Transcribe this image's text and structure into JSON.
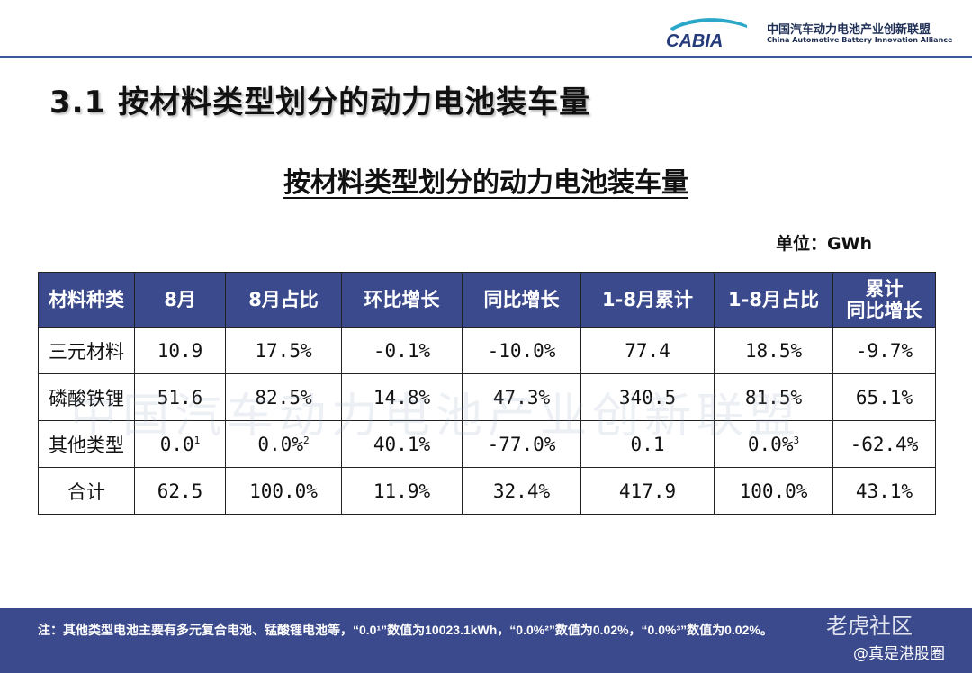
{
  "header": {
    "logo_text": "CABIA",
    "org_name_cn": "中国汽车动力电池产业创新联盟",
    "org_name_en": "China Automotive Battery Innovation Alliance",
    "accent_color": "#3b4a8c"
  },
  "page_title": "3.1 按材料类型划分的动力电池装车量",
  "table_title": "按材料类型划分的动力电池装车量",
  "unit_label": "单位：GWh",
  "watermark_text": "中国汽车动力电池产业创新联盟",
  "table": {
    "headers": [
      "材料种类",
      "8月",
      "8月占比",
      "环比增长",
      "同比增长",
      "1-8月累计",
      "1-8月占比",
      "累计",
      "同比增长"
    ],
    "rows": [
      {
        "type": "三元材料",
        "aug": "10.9",
        "aug_share": "17.5%",
        "mom": "-0.1%",
        "yoy": "-10.0%",
        "ytd": "77.4",
        "ytd_share": "18.5%",
        "ytd_yoy": "-9.7%"
      },
      {
        "type": "磷酸铁锂",
        "aug": "51.6",
        "aug_share": "82.5%",
        "mom": "14.8%",
        "yoy": "47.3%",
        "ytd": "340.5",
        "ytd_share": "81.5%",
        "ytd_yoy": "65.1%"
      },
      {
        "type": "其他类型",
        "aug": "0.0",
        "aug_note": "1",
        "aug_share": "0.0%",
        "aug_share_note": "2",
        "mom": "40.1%",
        "yoy": "-77.0%",
        "ytd": "0.1",
        "ytd_share": "0.0%",
        "ytd_share_note": "3",
        "ytd_yoy": "-62.4%"
      },
      {
        "type": "合计",
        "aug": "62.5",
        "aug_share": "100.0%",
        "mom": "11.9%",
        "yoy": "32.4%",
        "ytd": "417.9",
        "ytd_share": "100.0%",
        "ytd_yoy": "43.1%"
      }
    ]
  },
  "footer": {
    "note": "注：其他类型电池主要有多元复合电池、锰酸锂电池等，“0.0¹”数值为10023.1kWh，“0.0%²”数值为0.02%，“0.0%³”数值为0.02%。",
    "brand_watermark": "老虎社区",
    "user_watermark": "@真是港股圈"
  }
}
